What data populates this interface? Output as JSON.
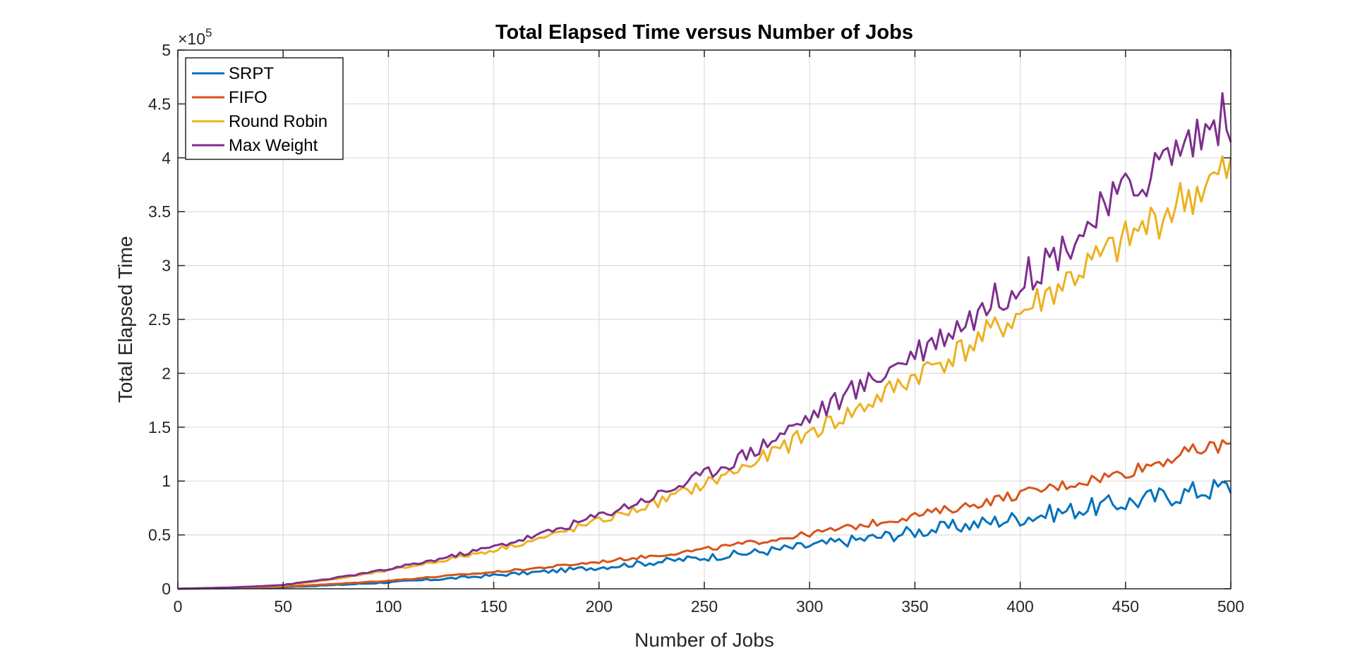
{
  "chart_data": {
    "type": "line",
    "title": "Total Elapsed Time versus Number of Jobs",
    "xlabel": "Number of Jobs",
    "ylabel": "Total Elapsed Time",
    "xlim": [
      0,
      500
    ],
    "ylim": [
      0,
      500000
    ],
    "y_exponent_label": "×10",
    "y_exponent_power": "5",
    "x_ticks": [
      0,
      50,
      100,
      150,
      200,
      250,
      300,
      350,
      400,
      450,
      500
    ],
    "x_tick_labels": [
      "0",
      "50",
      "100",
      "150",
      "200",
      "250",
      "300",
      "350",
      "400",
      "450",
      "500"
    ],
    "y_ticks": [
      0,
      50000,
      100000,
      150000,
      200000,
      250000,
      300000,
      350000,
      400000,
      450000,
      500000
    ],
    "y_tick_labels": [
      "0",
      "0.5",
      "1",
      "1.5",
      "2",
      "2.5",
      "3",
      "3.5",
      "4",
      "4.5",
      "5"
    ],
    "grid": true,
    "legend_position": "top-left",
    "x": [
      0,
      25,
      50,
      75,
      100,
      125,
      150,
      175,
      200,
      225,
      250,
      275,
      300,
      325,
      350,
      375,
      400,
      425,
      450,
      475,
      500
    ],
    "series": [
      {
        "name": "SRPT",
        "color": "#0072BD",
        "values": [
          0,
          500,
          1500,
          3500,
          6000,
          9000,
          12500,
          16000,
          20000,
          24500,
          29000,
          34000,
          40000,
          46000,
          53000,
          59000,
          66000,
          73000,
          80000,
          88000,
          95000
        ]
      },
      {
        "name": "FIFO",
        "color": "#D95319",
        "values": [
          0,
          700,
          2000,
          4500,
          7500,
          11500,
          15500,
          20000,
          25000,
          30500,
          36500,
          43500,
          51000,
          59000,
          68000,
          77000,
          88000,
          98000,
          108000,
          124000,
          135000
        ]
      },
      {
        "name": "Round Robin",
        "color": "#EDB120",
        "values": [
          0,
          1000,
          3000,
          9000,
          17000,
          26000,
          36000,
          48000,
          63000,
          78000,
          97000,
          118000,
          145000,
          168000,
          198000,
          224000,
          255000,
          290000,
          322000,
          358000,
          388000
        ]
      },
      {
        "name": "Max Weight",
        "color": "#7E2F8E",
        "values": [
          0,
          1200,
          3500,
          10000,
          18000,
          28000,
          39000,
          52000,
          68000,
          85000,
          106000,
          130000,
          160000,
          188000,
          220000,
          250000,
          285000,
          325000,
          368000,
          410000,
          440000
        ]
      }
    ]
  }
}
